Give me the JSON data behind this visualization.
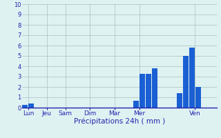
{
  "title": "",
  "xlabel": "Précipitations 24h ( mm )",
  "ylabel": "",
  "background_color": "#dff2f2",
  "bar_color": "#1a5fd4",
  "grid_color": "#aabfbf",
  "axis_color": "#2222aa",
  "text_color": "#2222aa",
  "ylim": [
    0,
    10
  ],
  "yticks": [
    0,
    1,
    2,
    3,
    4,
    5,
    6,
    7,
    8,
    9,
    10
  ],
  "day_labels": [
    "Lun",
    "Jeu",
    "Sam",
    "Dim",
    "Mar",
    "Mer",
    "Ven"
  ],
  "day_positions": [
    0.5,
    3.5,
    6.5,
    10.5,
    14.5,
    18.5,
    27.5
  ],
  "num_bars": 31,
  "bar_values": [
    0.3,
    0.4,
    0,
    0,
    0,
    0,
    0,
    0,
    0,
    0,
    0,
    0,
    0,
    0,
    0,
    0,
    0,
    0,
    0.7,
    3.3,
    3.3,
    3.8,
    0,
    0,
    0,
    1.4,
    5.0,
    5.8,
    2.0,
    0,
    0
  ],
  "bar_width": 0.9,
  "xlim": [
    -0.5,
    31
  ]
}
